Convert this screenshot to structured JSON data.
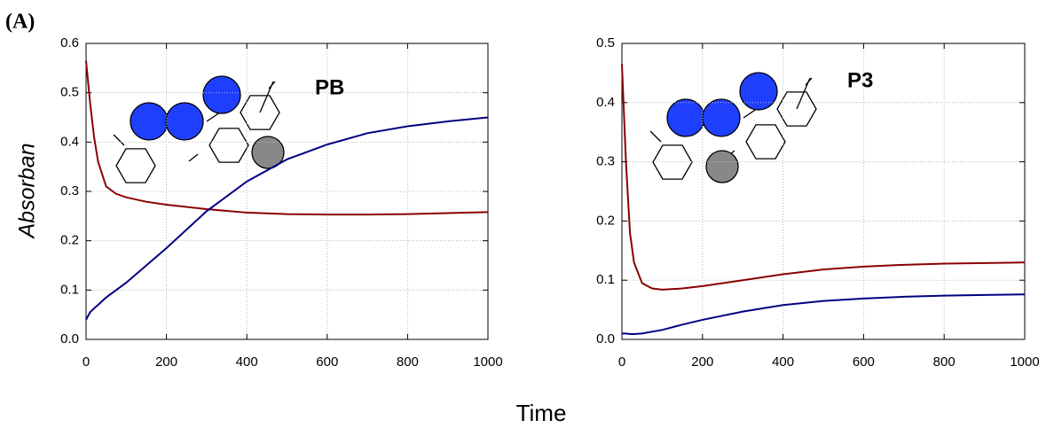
{
  "panel_label": "(A)",
  "ylabel": "Absorban",
  "xlabel": "Time",
  "chart_data": [
    {
      "type": "line",
      "annotation": "PB",
      "x": [
        0,
        10,
        20,
        30,
        50,
        75,
        100,
        150,
        200,
        300,
        400,
        500,
        600,
        700,
        800,
        900,
        1000
      ],
      "series": [
        {
          "color": "#8b0000",
          "values": [
            0.565,
            0.48,
            0.41,
            0.36,
            0.31,
            0.295,
            0.288,
            0.279,
            0.273,
            0.264,
            0.257,
            0.254,
            0.253,
            0.253,
            0.254,
            0.256,
            0.258
          ]
        },
        {
          "color": "#000080",
          "values": [
            0.04,
            0.055,
            0.063,
            0.07,
            0.085,
            0.1,
            0.115,
            0.15,
            0.185,
            0.26,
            0.32,
            0.365,
            0.395,
            0.418,
            0.432,
            0.442,
            0.45
          ]
        }
      ],
      "xlim": [
        0,
        1000
      ],
      "xticks": [
        0,
        200,
        400,
        600,
        800,
        1000
      ],
      "ylim": [
        0,
        0.6
      ],
      "yticks": [
        {
          "value": 0,
          "label": "0.0"
        },
        0.1,
        0.2,
        0.3,
        0.4,
        0.5,
        0.6
      ],
      "grid": true
    },
    {
      "type": "line",
      "annotation": "P3",
      "x": [
        0,
        10,
        20,
        30,
        50,
        75,
        100,
        150,
        200,
        300,
        400,
        500,
        600,
        700,
        800,
        900,
        1000
      ],
      "series": [
        {
          "color": "#8b0000",
          "values": [
            0.465,
            0.3,
            0.18,
            0.13,
            0.095,
            0.086,
            0.084,
            0.086,
            0.09,
            0.1,
            0.11,
            0.118,
            0.123,
            0.126,
            0.128,
            0.129,
            0.13
          ]
        },
        {
          "color": "#000080",
          "values": [
            0.01,
            0.01,
            0.009,
            0.009,
            0.01,
            0.013,
            0.016,
            0.025,
            0.033,
            0.047,
            0.058,
            0.065,
            0.069,
            0.072,
            0.074,
            0.075,
            0.076
          ]
        }
      ],
      "xlim": [
        0,
        1000
      ],
      "xticks": [
        0,
        200,
        400,
        600,
        800,
        1000
      ],
      "ylim": [
        0,
        0.5
      ],
      "yticks": [
        {
          "value": 0,
          "label": "0.0"
        },
        0.1,
        0.2,
        0.3,
        0.4,
        0.5
      ],
      "grid": true
    }
  ]
}
